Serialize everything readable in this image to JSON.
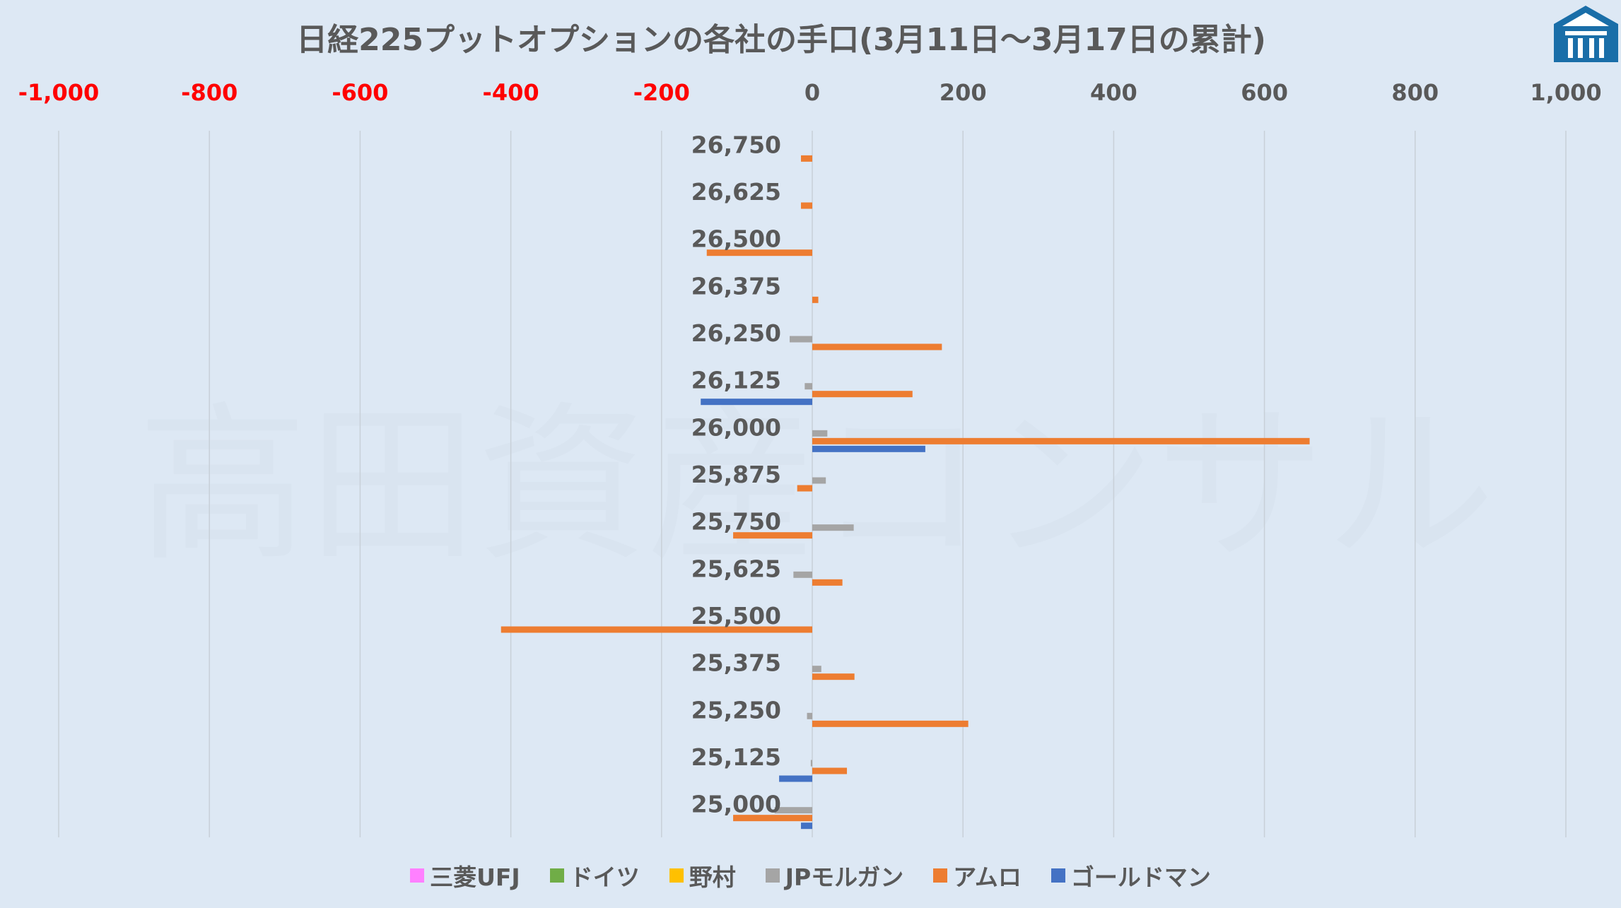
{
  "chart_data": {
    "type": "bar",
    "orientation": "horizontal",
    "title": "日経225プットオプションの各社の手口(3月11日～3月17日の累計)",
    "watermark": "高田資産コンサル",
    "xlim": [
      -1000,
      1000
    ],
    "x_ticks": [
      -1000,
      -800,
      -600,
      -400,
      -200,
      0,
      200,
      400,
      600,
      800,
      1000
    ],
    "x_tick_labels": [
      "-1,000",
      "-800",
      "-600",
      "-400",
      "-200",
      "0",
      "200",
      "400",
      "600",
      "800",
      "1,000"
    ],
    "negative_tick_color": "#ff0000",
    "positive_tick_color": "#595959",
    "grid": "vertical",
    "legend_position": "bottom",
    "categories": [
      "26,750",
      "26,625",
      "26,500",
      "26,375",
      "26,250",
      "26,125",
      "26,000",
      "25,875",
      "25,750",
      "25,625",
      "25,500",
      "25,375",
      "25,250",
      "25,125",
      "25,000"
    ],
    "series": [
      {
        "name": "三菱UFJ",
        "color": "#ff80ff",
        "values": [
          0,
          0,
          0,
          0,
          0,
          0,
          0,
          0,
          0,
          0,
          0,
          0,
          0,
          0,
          0
        ]
      },
      {
        "name": "ドイツ",
        "color": "#70ad47",
        "values": [
          0,
          0,
          0,
          0,
          0,
          0,
          0,
          0,
          0,
          0,
          0,
          0,
          0,
          0,
          0
        ]
      },
      {
        "name": "野村",
        "color": "#ffc000",
        "values": [
          0,
          0,
          0,
          0,
          0,
          0,
          0,
          0,
          0,
          0,
          0,
          0,
          0,
          0,
          0
        ]
      },
      {
        "name": "JPモルガン",
        "color": "#a5a5a5",
        "values": [
          0,
          0,
          0,
          0,
          -30,
          -10,
          20,
          18,
          55,
          -25,
          0,
          12,
          -7,
          -2,
          -50
        ]
      },
      {
        "name": "アムロ",
        "color": "#ed7d31",
        "values": [
          -15,
          -15,
          -140,
          8,
          172,
          133,
          660,
          -20,
          -105,
          40,
          -413,
          56,
          207,
          46,
          -105
        ]
      },
      {
        "name": "ゴールドマン",
        "color": "#4472c4",
        "values": [
          0,
          0,
          0,
          0,
          0,
          -148,
          150,
          0,
          0,
          0,
          0,
          0,
          0,
          -44,
          -15
        ]
      }
    ]
  }
}
